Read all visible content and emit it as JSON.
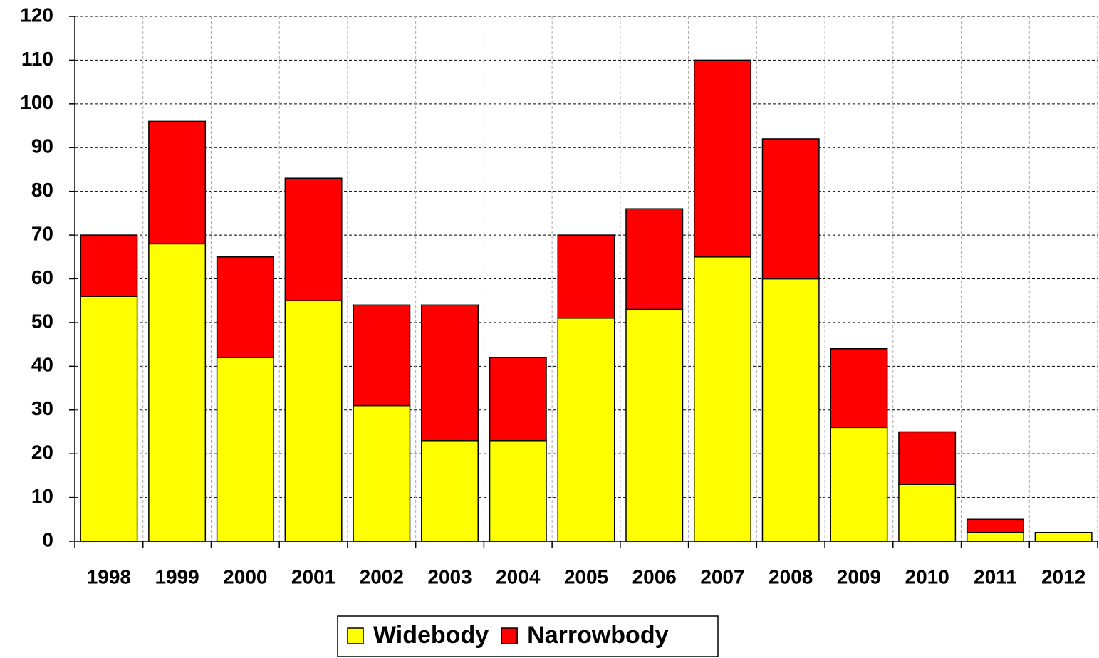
{
  "chart_data": {
    "type": "stacked-bar",
    "categories": [
      "1998",
      "1999",
      "2000",
      "2001",
      "2002",
      "2003",
      "2004",
      "2005",
      "2006",
      "2007",
      "2008",
      "2009",
      "2010",
      "2011",
      "2012"
    ],
    "series": [
      {
        "name": "Widebody",
        "color": "#ffff00",
        "values": [
          56,
          68,
          42,
          55,
          31,
          23,
          23,
          51,
          53,
          65,
          60,
          26,
          13,
          2,
          2
        ]
      },
      {
        "name": "Narrowbody",
        "color": "#ff0000",
        "values": [
          14,
          28,
          23,
          28,
          23,
          31,
          19,
          19,
          23,
          45,
          32,
          18,
          12,
          3,
          0
        ]
      }
    ],
    "ylim": [
      0,
      120
    ],
    "yticks": [
      0,
      10,
      20,
      30,
      40,
      50,
      60,
      70,
      80,
      90,
      100,
      110,
      120
    ],
    "grid": true,
    "legend": "bottom"
  }
}
